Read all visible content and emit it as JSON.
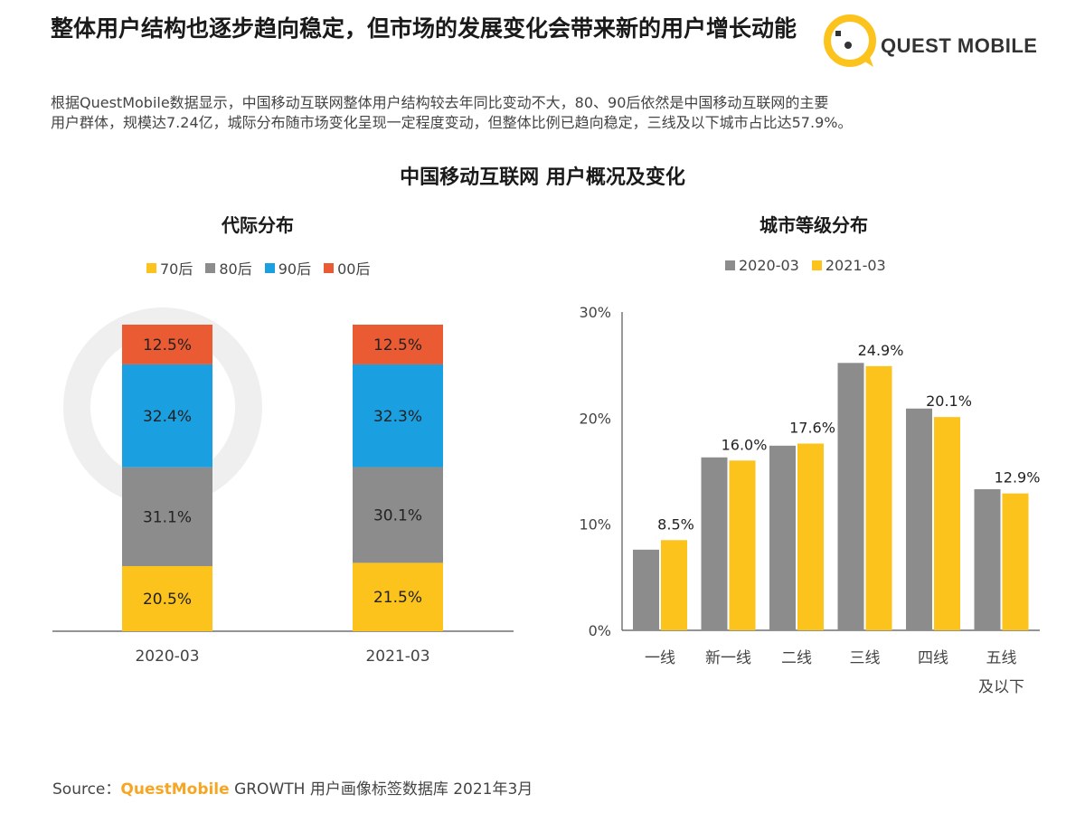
{
  "header": {
    "title": "整体用户结构也逐步趋向稳定，但市场的发展变化会带来新的用户增长动能",
    "logo_text": "QUEST MOBILE"
  },
  "description": [
    "根据QuestMobile数据显示，中国移动互联网整体用户结构较去年同比变动不大，80、90后依然是中国移动互联网的主要",
    "用户群体，规模达7.24亿，城际分布随市场变化呈现一定程度变动，但整体比例已趋向稳定，三线及以下城市占比达57.9%。"
  ],
  "main_title": "中国移动互联网 用户概况及变化",
  "source": {
    "prefix": "Source：",
    "brand": "QuestMobile",
    "suffix": " GROWTH 用户画像标签数据库 2021年3月"
  },
  "colors": {
    "c70": "#fbc31c",
    "c80": "#8c8c8c",
    "c90": "#1a9fe0",
    "c00": "#ea5a33",
    "y2020": "#8c8c8c",
    "y2021": "#fbc31c"
  },
  "chart_data": [
    {
      "type": "bar",
      "stacked": true,
      "title": "代际分布",
      "categories": [
        "2020-03",
        "2021-03"
      ],
      "series": [
        {
          "name": "70后",
          "values": [
            20.5,
            21.5
          ],
          "labels": [
            "20.5%",
            "21.5%"
          ]
        },
        {
          "name": "80后",
          "values": [
            31.1,
            30.1
          ],
          "labels": [
            "31.1%",
            "30.1%"
          ]
        },
        {
          "name": "90后",
          "values": [
            32.4,
            32.3
          ],
          "labels": [
            "32.4%",
            "32.3%"
          ]
        },
        {
          "name": "00后",
          "values": [
            12.5,
            12.5
          ],
          "labels": [
            "12.5%",
            "12.5%"
          ]
        }
      ],
      "legend_position": "top"
    },
    {
      "type": "bar",
      "title": "城市等级分布",
      "categories": [
        "一线",
        "新一线",
        "二线",
        "三线",
        "四线",
        "五线及以下"
      ],
      "category_lines": [
        [
          "一线"
        ],
        [
          "新一线"
        ],
        [
          "二线"
        ],
        [
          "三线"
        ],
        [
          "四线"
        ],
        [
          "五线",
          "及以下"
        ]
      ],
      "series": [
        {
          "name": "2020-03",
          "values": [
            7.6,
            16.3,
            17.4,
            25.2,
            20.9,
            13.3
          ]
        },
        {
          "name": "2021-03",
          "values": [
            8.5,
            16.0,
            17.6,
            24.9,
            20.1,
            12.9
          ]
        }
      ],
      "data_labels": [
        "8.5%",
        "16.0%",
        "17.6%",
        "24.9%",
        "20.1%",
        "12.9%"
      ],
      "y_ticks": [
        "0%",
        "10%",
        "20%",
        "30%"
      ],
      "ylim": [
        0,
        30
      ],
      "legend_position": "top"
    }
  ]
}
